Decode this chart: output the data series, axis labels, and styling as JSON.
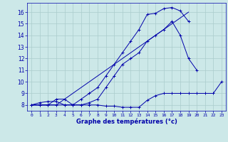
{
  "xlabel": "Graphe des températures (°c)",
  "background_color": "#cce8e8",
  "grid_color": "#aacccc",
  "line_color": "#0000aa",
  "xlim": [
    -0.5,
    23.5
  ],
  "ylim": [
    7.5,
    16.8
  ],
  "yticks": [
    8,
    9,
    10,
    11,
    12,
    13,
    14,
    15,
    16
  ],
  "xtick_labels": [
    "0",
    "1",
    "2",
    "3",
    "4",
    "5",
    "6",
    "7",
    "8",
    "9",
    "10",
    "11",
    "12",
    "13",
    "14",
    "15",
    "16",
    "17",
    "18",
    "19",
    "20",
    "21",
    "22",
    "23"
  ],
  "series": [
    {
      "x": [
        0,
        1,
        2,
        3,
        4,
        5,
        6,
        7,
        8,
        9,
        10,
        11,
        12,
        13,
        14,
        15,
        16,
        17,
        18,
        19,
        20,
        21,
        22,
        23
      ],
      "y": [
        8.0,
        8.2,
        8.3,
        8.3,
        8.0,
        8.0,
        8.0,
        8.0,
        8.0,
        7.9,
        7.9,
        7.8,
        7.8,
        7.8,
        8.4,
        8.8,
        9.0,
        9.0,
        9.0,
        9.0,
        9.0,
        9.0,
        9.0,
        10.0
      ],
      "marker": true
    },
    {
      "x": [
        0,
        1,
        2,
        3,
        4,
        5,
        6,
        7,
        8,
        9,
        10,
        11,
        12,
        13,
        14,
        15,
        16,
        17,
        18,
        19,
        20,
        21,
        22,
        23
      ],
      "y": [
        8.0,
        8.0,
        8.0,
        8.5,
        8.5,
        8.0,
        8.0,
        8.2,
        8.5,
        9.5,
        10.5,
        11.5,
        12.0,
        12.5,
        13.5,
        14.0,
        14.5,
        15.2,
        14.0,
        12.0,
        11.0,
        null,
        null,
        null
      ],
      "marker": true
    },
    {
      "x": [
        0,
        1,
        2,
        3,
        4,
        5,
        6,
        7,
        8,
        9,
        10,
        11,
        12,
        13,
        14,
        15,
        16,
        17,
        18,
        19,
        20,
        21,
        22,
        23
      ],
      "y": [
        8.0,
        8.0,
        8.0,
        8.0,
        8.0,
        8.0,
        8.5,
        9.0,
        9.5,
        10.5,
        11.5,
        12.5,
        13.5,
        14.5,
        15.8,
        15.9,
        16.3,
        16.4,
        16.1,
        15.2,
        null,
        null,
        null,
        null
      ],
      "marker": true
    },
    {
      "x": [
        0,
        1,
        2,
        3,
        4,
        5,
        6,
        7,
        8,
        9,
        10,
        11,
        12,
        13,
        14,
        15,
        16,
        17,
        18,
        19,
        20,
        21,
        22,
        23
      ],
      "y": [
        8.0,
        8.0,
        8.0,
        8.0,
        8.5,
        9.0,
        9.5,
        10.0,
        10.5,
        11.0,
        11.5,
        12.0,
        12.5,
        13.0,
        13.5,
        14.0,
        14.5,
        15.0,
        15.5,
        16.0,
        null,
        null,
        null,
        null
      ],
      "marker": false
    }
  ]
}
